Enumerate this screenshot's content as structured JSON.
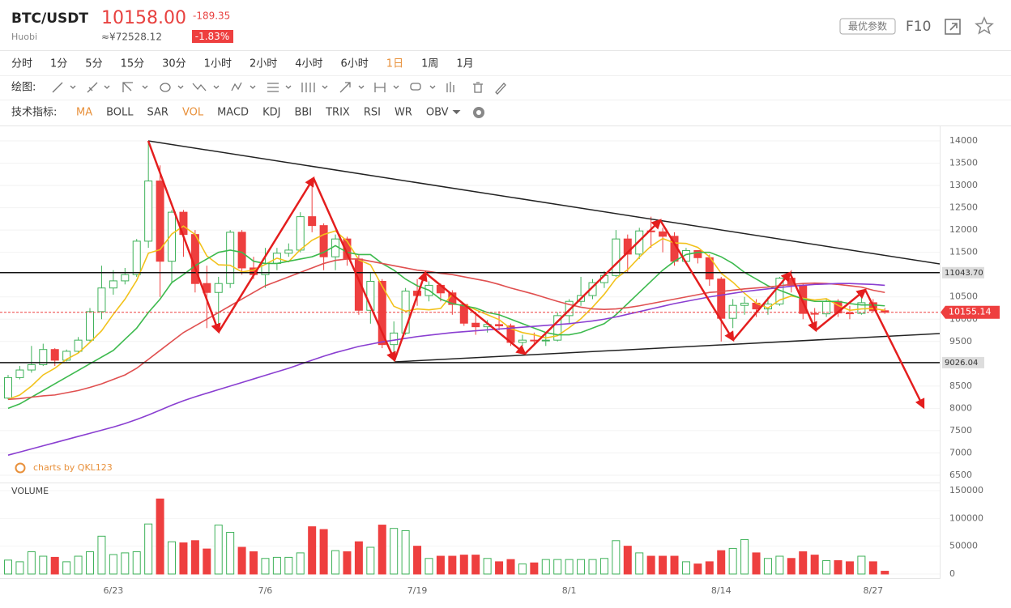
{
  "header": {
    "symbol": "BTC/USDT",
    "exchange": "Huobi",
    "price": "10158.00",
    "change": "-189.35",
    "cny": "≈¥72528.12",
    "change_pct": "-1.83%",
    "params_button": "最优参数",
    "f10": "F10"
  },
  "toolbar": {
    "periods": [
      "分时",
      "1分",
      "5分",
      "15分",
      "30分",
      "1小时",
      "2小时",
      "4小时",
      "6小时",
      "1日",
      "1周",
      "1月"
    ],
    "active_period_index": 9,
    "draw_label": "绘图:",
    "indicators_label": "技术指标:",
    "indicators": [
      "MA",
      "BOLL",
      "SAR",
      "VOL",
      "MACD",
      "KDJ",
      "BBI",
      "TRIX",
      "RSI",
      "WR",
      "OBV"
    ],
    "active_indicator_indices": [
      0,
      3
    ]
  },
  "watermark": "charts by QKL123",
  "chart_data": [
    {
      "type": "candlestick",
      "up_color": "#3fb25a",
      "down_color": "#ee3f3f",
      "open": [
        8230,
        8690,
        8860,
        8980,
        9320,
        9080,
        9280,
        9530,
        10170,
        10700,
        10860,
        11000,
        11750,
        13100,
        11300,
        12400,
        11900,
        10800,
        10600,
        10800,
        11950,
        11150,
        11000,
        11250,
        11480,
        11550,
        12300,
        12100,
        11400,
        11800,
        11350,
        10200,
        10850,
        9430,
        9690,
        10630,
        10530,
        10760,
        10590,
        10330,
        9910,
        9830,
        9880,
        9850,
        9480,
        9530,
        9520,
        9530,
        10080,
        10400,
        10530,
        10820,
        10980,
        11800,
        11460,
        11980,
        11960,
        11860,
        11300,
        11540,
        11380,
        10900,
        10020,
        10310,
        10360,
        10230,
        10340,
        10920,
        10760,
        10130,
        10120,
        10400,
        10140,
        10130,
        10370,
        10190
      ],
      "high": [
        8750,
        8950,
        9400,
        9450,
        9350,
        9320,
        9600,
        10250,
        11200,
        11100,
        11150,
        11800,
        14000,
        13450,
        12450,
        12450,
        12000,
        11200,
        10950,
        12000,
        12000,
        11400,
        11600,
        11600,
        11700,
        12400,
        13150,
        12150,
        11900,
        11850,
        11450,
        11050,
        10900,
        9950,
        10700,
        10900,
        10850,
        10800,
        10650,
        10350,
        10100,
        9980,
        10180,
        9900,
        9650,
        9700,
        9700,
        10150,
        10450,
        10950,
        10900,
        11080,
        12000,
        11900,
        12050,
        12300,
        12050,
        11950,
        11600,
        11550,
        11450,
        10950,
        10450,
        10500,
        10450,
        10500,
        10950,
        11100,
        10800,
        10250,
        10450,
        10450,
        10300,
        10620,
        10450,
        10250
      ],
      "low": [
        8200,
        8650,
        8800,
        8950,
        8950,
        9050,
        9250,
        9500,
        10000,
        10550,
        10780,
        10950,
        11600,
        10500,
        10800,
        11400,
        10600,
        9800,
        9700,
        10700,
        11000,
        10900,
        10700,
        11100,
        11400,
        11500,
        11950,
        11100,
        11100,
        11200,
        10100,
        9900,
        9350,
        9050,
        9650,
        10300,
        10400,
        10400,
        10100,
        9850,
        9650,
        9700,
        9750,
        9400,
        9400,
        9450,
        9400,
        9500,
        9900,
        10300,
        10450,
        10700,
        10950,
        11050,
        11350,
        11600,
        11500,
        11200,
        11250,
        11250,
        10750,
        9500,
        9800,
        10100,
        10050,
        10100,
        10300,
        10600,
        10000,
        9900,
        10050,
        10050,
        10000,
        10100,
        10150,
        10120
      ],
      "close": [
        8690,
        8860,
        8980,
        9320,
        9080,
        9280,
        9530,
        10170,
        10700,
        10860,
        11000,
        11750,
        13100,
        11300,
        12400,
        11900,
        10800,
        10600,
        10800,
        11950,
        11150,
        11000,
        11250,
        11480,
        11550,
        12300,
        12100,
        11400,
        11800,
        11350,
        10200,
        10850,
        9430,
        9690,
        10630,
        10530,
        10760,
        10590,
        10330,
        9910,
        9830,
        9880,
        9850,
        9480,
        9530,
        9520,
        9530,
        10080,
        10400,
        10530,
        10820,
        10980,
        11800,
        11460,
        11980,
        11960,
        11860,
        11300,
        11540,
        11380,
        10900,
        10020,
        10310,
        10360,
        10230,
        10340,
        10920,
        10760,
        10130,
        10120,
        10400,
        10140,
        10130,
        10370,
        10190,
        10155
      ],
      "series": [
        {
          "color": "#f2c21b",
          "values": [
            8200,
            8300,
            8500,
            8750,
            8900,
            9100,
            9240,
            9480,
            9740,
            10110,
            10450,
            10870,
            11480,
            11560,
            11910,
            12090,
            11900,
            11420,
            11220,
            11210,
            11060,
            11100,
            11230,
            11370,
            11290,
            11560,
            11770,
            11900,
            11980,
            11750,
            11330,
            11220,
            10740,
            10290,
            10180,
            10230,
            10210,
            10240,
            10560,
            10340,
            10210,
            10100,
            9990,
            9790,
            9700,
            9650,
            9580,
            9630,
            9810,
            10010,
            10270,
            10560,
            10910,
            11110,
            11390,
            11640,
            11810,
            11710,
            11700,
            11610,
            11400,
            11030,
            10830,
            10580,
            10360,
            10250,
            10430,
            10520,
            10470,
            10430,
            10460,
            10310,
            10200,
            10230,
            10240,
            10200
          ]
        },
        {
          "color": "#3dba4e",
          "values": [
            8000,
            8100,
            8250,
            8400,
            8550,
            8700,
            8850,
            9000,
            9150,
            9300,
            9550,
            9800,
            10150,
            10450,
            10820,
            11000,
            11200,
            11350,
            11500,
            11550,
            11500,
            11300,
            11250,
            11250,
            11300,
            11350,
            11400,
            11500,
            11650,
            11500,
            11450,
            11450,
            11250,
            11100,
            10900,
            10750,
            10650,
            10450,
            10350,
            10300,
            10250,
            10150,
            10100,
            10000,
            9900,
            9800,
            9700,
            9650,
            9650,
            9700,
            9800,
            9900,
            10100,
            10350,
            10600,
            10850,
            11100,
            11300,
            11450,
            11500,
            11500,
            11400,
            11250,
            11050,
            10900,
            10750,
            10650,
            10550,
            10450,
            10400,
            10400,
            10400,
            10350,
            10320,
            10320,
            10300
          ]
        },
        {
          "color": "#e05050",
          "values": [
            8200,
            8220,
            8250,
            8280,
            8300,
            8350,
            8400,
            8470,
            8550,
            8650,
            8750,
            8900,
            9100,
            9300,
            9500,
            9700,
            9850,
            10000,
            10150,
            10300,
            10450,
            10600,
            10750,
            10850,
            10950,
            11050,
            11150,
            11250,
            11320,
            11350,
            11350,
            11300,
            11250,
            11200,
            11150,
            11100,
            11070,
            11030,
            11000,
            10950,
            10900,
            10850,
            10780,
            10700,
            10630,
            10560,
            10480,
            10400,
            10330,
            10270,
            10230,
            10220,
            10230,
            10260,
            10300,
            10350,
            10400,
            10450,
            10500,
            10550,
            10600,
            10620,
            10650,
            10680,
            10700,
            10720,
            10750,
            10780,
            10800,
            10810,
            10800,
            10780,
            10750,
            10720,
            10650,
            10600
          ]
        },
        {
          "color": "#8a3fd1",
          "values": [
            6950,
            7020,
            7090,
            7160,
            7230,
            7300,
            7370,
            7440,
            7510,
            7580,
            7660,
            7750,
            7850,
            7960,
            8070,
            8170,
            8260,
            8340,
            8420,
            8500,
            8580,
            8660,
            8740,
            8820,
            8900,
            8990,
            9080,
            9170,
            9250,
            9320,
            9390,
            9440,
            9490,
            9530,
            9570,
            9610,
            9640,
            9670,
            9700,
            9720,
            9740,
            9760,
            9780,
            9800,
            9820,
            9840,
            9860,
            9880,
            9900,
            9930,
            9960,
            10000,
            10050,
            10110,
            10170,
            10230,
            10290,
            10350,
            10400,
            10450,
            10500,
            10540,
            10580,
            10620,
            10650,
            10680,
            10710,
            10740,
            10760,
            10780,
            10790,
            10800,
            10800,
            10790,
            10780,
            10760
          ]
        }
      ],
      "ylim": [
        6300,
        14300
      ],
      "yticks": [
        6500,
        7000,
        7500,
        8000,
        8500,
        9000,
        9500,
        10000,
        10500,
        11000,
        11500,
        12000,
        12500,
        13000,
        13500,
        14000
      ],
      "grid": true,
      "hlines": [
        {
          "value": 11043.7,
          "label": "11043.70"
        },
        9026.04
      ],
      "last_price": 10155.14
    },
    {
      "type": "bar",
      "title": "VOLUME",
      "categories": [
        null,
        null,
        null,
        null,
        null,
        null,
        null,
        null,
        null,
        "6/23",
        null,
        null,
        null,
        null,
        null,
        null,
        null,
        null,
        null,
        null,
        null,
        null,
        "7/6",
        null,
        null,
        null,
        null,
        null,
        null,
        null,
        null,
        null,
        null,
        null,
        null,
        "7/19",
        null,
        null,
        null,
        null,
        null,
        null,
        null,
        null,
        null,
        null,
        null,
        null,
        "8/1",
        null,
        null,
        null,
        null,
        null,
        null,
        null,
        null,
        null,
        null,
        null,
        null,
        "8/14",
        null,
        null,
        null,
        null,
        null,
        null,
        null,
        null,
        null,
        null,
        null,
        null,
        "8/27",
        null
      ],
      "values": [
        25000,
        22000,
        40000,
        32000,
        30000,
        22000,
        32000,
        40000,
        68000,
        35000,
        38000,
        40000,
        90000,
        135000,
        58000,
        56000,
        60000,
        45000,
        88000,
        75000,
        48000,
        40000,
        28000,
        30000,
        30000,
        38000,
        85000,
        80000,
        42000,
        40000,
        58000,
        48000,
        88000,
        82000,
        78000,
        50000,
        28000,
        32000,
        32000,
        34000,
        34000,
        28000,
        22000,
        26000,
        18000,
        20000,
        26000,
        26000,
        26000,
        26000,
        26000,
        28000,
        60000,
        50000,
        38000,
        32000,
        32000,
        32000,
        22000,
        18000,
        22000,
        42000,
        46000,
        62000,
        38000,
        28000,
        32000,
        28000,
        40000,
        34000,
        24000,
        24000,
        22000,
        32000,
        22000,
        5000
      ],
      "ylim": [
        0,
        150000
      ],
      "yticks": [
        0,
        50000,
        100000,
        150000
      ]
    }
  ]
}
